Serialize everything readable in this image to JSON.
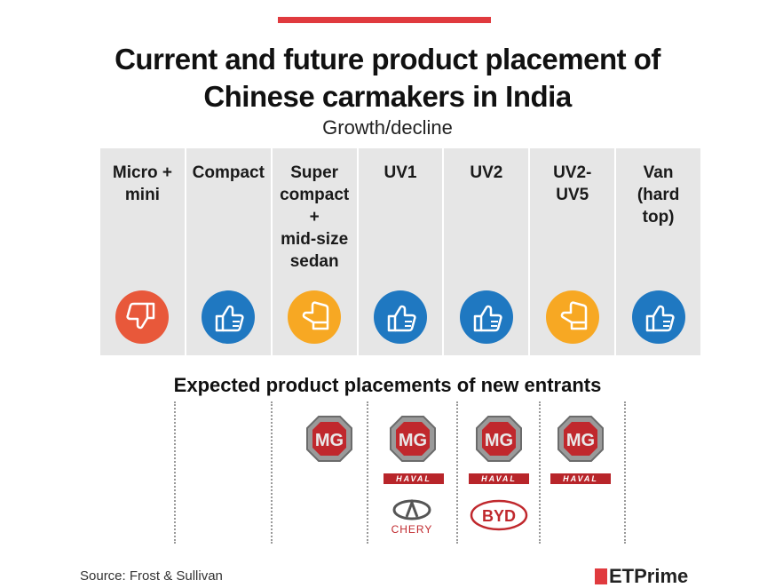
{
  "title_line1": "Current and future product placement of",
  "title_line2": "Chinese carmakers in India",
  "subtitle": "Growth/decline",
  "columns": [
    {
      "label_lines": [
        "Micro +",
        "mini"
      ],
      "status": "decline",
      "icon": "thumbs-down-icon",
      "color": "#e8583a"
    },
    {
      "label_lines": [
        "Compact"
      ],
      "status": "growth",
      "icon": "thumbs-up-icon",
      "color": "#1f78c1"
    },
    {
      "label_lines": [
        "Super",
        "compact",
        "+",
        "mid-size",
        "sedan"
      ],
      "status": "neutral",
      "icon": "thumb-sideways-icon",
      "color": "#f7a823"
    },
    {
      "label_lines": [
        "UV1"
      ],
      "status": "growth",
      "icon": "thumbs-up-icon",
      "color": "#1f78c1"
    },
    {
      "label_lines": [
        "UV2"
      ],
      "status": "growth",
      "icon": "thumbs-up-icon",
      "color": "#1f78c1"
    },
    {
      "label_lines": [
        "UV2-",
        "UV5"
      ],
      "status": "neutral",
      "icon": "thumb-sideways-icon",
      "color": "#f7a823"
    },
    {
      "label_lines": [
        "Van",
        "(hard",
        "top)"
      ],
      "status": "growth",
      "icon": "thumbs-up-icon",
      "color": "#1f78c1"
    }
  ],
  "section_title": "Expected product placements of new entrants",
  "entrants": {
    "col3": [
      "mg-logo"
    ],
    "col4": [
      "mg-logo",
      "haval-logo",
      "chery-logo"
    ],
    "col5": [
      "mg-logo",
      "haval-logo",
      "byd-logo"
    ],
    "col6": [
      "mg-logo",
      "haval-logo"
    ]
  },
  "logos": {
    "mg": "MG",
    "haval": "HAVAL",
    "chery": "CHERY",
    "byd": "BYD"
  },
  "source": "Source: Frost & Sullivan",
  "brand": "ETPrime",
  "colors": {
    "accent": "#e03a3e",
    "growth": "#1f78c1",
    "decline": "#e8583a",
    "neutral": "#f7a823",
    "column_bg": "#e6e6e6"
  }
}
